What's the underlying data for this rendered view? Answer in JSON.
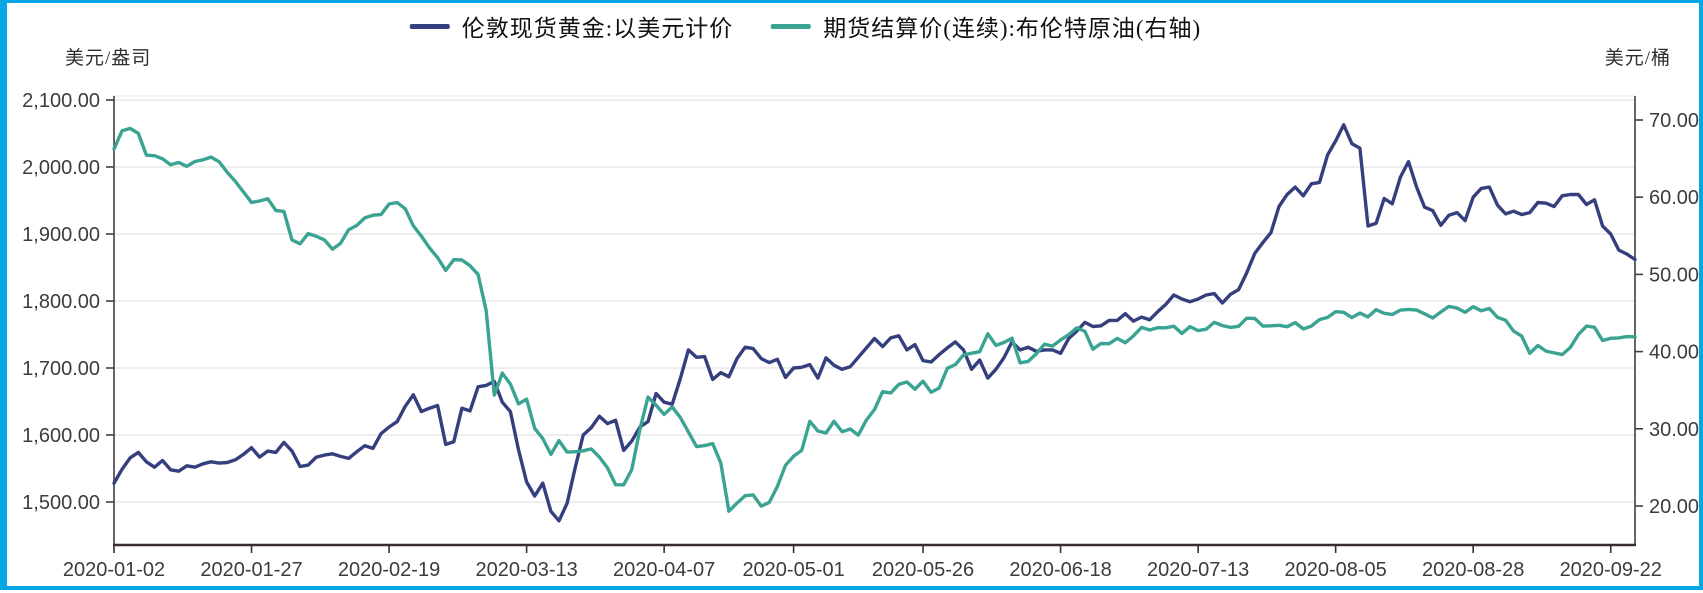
{
  "frame": {
    "border_color": "#06a7e4",
    "background": "#ffffff"
  },
  "legend": {
    "items": [
      {
        "label": "伦敦现货黄金:以美元计价",
        "color": "#353f7e"
      },
      {
        "label": "期货结算价(连续):布伦特原油(右轴)",
        "color": "#3ba392"
      }
    ]
  },
  "left_axis": {
    "unit": "美元/盎司",
    "min": 1500,
    "max": 2100,
    "tick_values": [
      2100,
      2000,
      1900,
      1800,
      1700,
      1600,
      1500
    ],
    "tick_labels": [
      "2,100.00",
      "2,000.00",
      "1,900.00",
      "1,800.00",
      "1,700.00",
      "1,600.00",
      "1,500.00"
    ]
  },
  "right_axis": {
    "unit": "美元/桶",
    "min": 20,
    "max": 70,
    "tick_values": [
      70,
      60,
      50,
      40,
      30,
      20
    ],
    "tick_labels": [
      "70.00",
      "60.00",
      "50.00",
      "40.00",
      "30.00",
      "20.00"
    ]
  },
  "x_axis": {
    "tick_labels": [
      "2020-01-02",
      "2020-01-27",
      "2020-02-19",
      "2020-03-13",
      "2020-04-07",
      "2020-05-01",
      "2020-05-26",
      "2020-06-18",
      "2020-07-13",
      "2020-08-05",
      "2020-08-28",
      "2020-09-22"
    ],
    "tick_indices": [
      0,
      17,
      34,
      51,
      68,
      84,
      100,
      117,
      134,
      151,
      168,
      185
    ]
  },
  "chart_data": {
    "type": "line",
    "title": "",
    "grid": true,
    "legend_position": "top-center",
    "x_dates": [
      "01-02",
      "01-03",
      "01-06",
      "01-07",
      "01-08",
      "01-09",
      "01-10",
      "01-13",
      "01-14",
      "01-15",
      "01-16",
      "01-17",
      "01-20",
      "01-21",
      "01-22",
      "01-23",
      "01-24",
      "01-27",
      "01-28",
      "01-29",
      "01-30",
      "01-31",
      "02-03",
      "02-04",
      "02-05",
      "02-06",
      "02-07",
      "02-10",
      "02-11",
      "02-12",
      "02-13",
      "02-14",
      "02-17",
      "02-18",
      "02-19",
      "02-20",
      "02-21",
      "02-24",
      "02-25",
      "02-26",
      "02-27",
      "02-28",
      "03-02",
      "03-03",
      "03-04",
      "03-05",
      "03-06",
      "03-09",
      "03-10",
      "03-11",
      "03-12",
      "03-13",
      "03-16",
      "03-17",
      "03-18",
      "03-19",
      "03-20",
      "03-23",
      "03-24",
      "03-25",
      "03-26",
      "03-27",
      "03-30",
      "03-31",
      "04-01",
      "04-02",
      "04-03",
      "04-06",
      "04-07",
      "04-08",
      "04-09",
      "04-14",
      "04-15",
      "04-16",
      "04-17",
      "04-20",
      "04-21",
      "04-22",
      "04-23",
      "04-24",
      "04-27",
      "04-28",
      "04-29",
      "04-30",
      "05-01",
      "05-04",
      "05-05",
      "05-06",
      "05-07",
      "05-08",
      "05-11",
      "05-12",
      "05-13",
      "05-14",
      "05-15",
      "05-18",
      "05-19",
      "05-20",
      "05-21",
      "05-22",
      "05-26",
      "05-27",
      "05-28",
      "05-29",
      "06-01",
      "06-02",
      "06-03",
      "06-04",
      "06-05",
      "06-08",
      "06-09",
      "06-10",
      "06-11",
      "06-12",
      "06-15",
      "06-16",
      "06-17",
      "06-18",
      "06-19",
      "06-22",
      "06-23",
      "06-24",
      "06-25",
      "06-26",
      "06-29",
      "06-30",
      "07-01",
      "07-02",
      "07-03",
      "07-06",
      "07-07",
      "07-08",
      "07-09",
      "07-10",
      "07-13",
      "07-14",
      "07-15",
      "07-16",
      "07-17",
      "07-20",
      "07-21",
      "07-22",
      "07-23",
      "07-24",
      "07-27",
      "07-28",
      "07-29",
      "07-30",
      "07-31",
      "08-03",
      "08-04",
      "08-05",
      "08-06",
      "08-07",
      "08-10",
      "08-11",
      "08-12",
      "08-13",
      "08-14",
      "08-17",
      "08-18",
      "08-19",
      "08-20",
      "08-21",
      "08-24",
      "08-25",
      "08-26",
      "08-27",
      "08-28",
      "08-31",
      "09-01",
      "09-02",
      "09-03",
      "09-04",
      "09-07",
      "09-08",
      "09-09",
      "09-10",
      "09-11",
      "09-14",
      "09-15",
      "09-16",
      "09-17",
      "09-18",
      "09-21",
      "09-22",
      "09-23",
      "09-24",
      "09-25"
    ],
    "series": [
      {
        "name": "伦敦现货黄金:以美元计价",
        "axis": "left",
        "color": "#353f7e",
        "values": [
          1528,
          1549,
          1566,
          1574,
          1560,
          1552,
          1562,
          1548,
          1546,
          1554,
          1552,
          1557,
          1560,
          1558,
          1559,
          1563,
          1571,
          1581,
          1567,
          1576,
          1574,
          1589,
          1576,
          1553,
          1555,
          1567,
          1570,
          1572,
          1568,
          1565,
          1575,
          1584,
          1580,
          1602,
          1612,
          1620,
          1643,
          1660,
          1635,
          1640,
          1644,
          1586,
          1590,
          1640,
          1636,
          1672,
          1674,
          1680,
          1649,
          1635,
          1578,
          1530,
          1509,
          1528,
          1486,
          1472,
          1498,
          1551,
          1600,
          1611,
          1628,
          1617,
          1622,
          1577,
          1591,
          1612,
          1620,
          1662,
          1649,
          1646,
          1684,
          1727,
          1716,
          1717,
          1683,
          1693,
          1687,
          1714,
          1731,
          1729,
          1714,
          1708,
          1713,
          1686,
          1700,
          1701,
          1705,
          1685,
          1715,
          1704,
          1698,
          1702,
          1716,
          1730,
          1744,
          1732,
          1745,
          1748,
          1727,
          1735,
          1711,
          1709,
          1720,
          1730,
          1739,
          1727,
          1698,
          1712,
          1685,
          1698,
          1715,
          1739,
          1727,
          1731,
          1725,
          1727,
          1727,
          1722,
          1744,
          1755,
          1768,
          1762,
          1763,
          1771,
          1771,
          1781,
          1770,
          1776,
          1772,
          1784,
          1795,
          1809,
          1803,
          1799,
          1803,
          1809,
          1811,
          1797,
          1810,
          1817,
          1842,
          1871,
          1887,
          1902,
          1941,
          1959,
          1970,
          1957,
          1975,
          1977,
          2018,
          2039,
          2063,
          2035,
          2028,
          1912,
          1916,
          1953,
          1945,
          1985,
          2008,
          1970,
          1940,
          1935,
          1913,
          1928,
          1932,
          1920,
          1955,
          1968,
          1970,
          1943,
          1930,
          1934,
          1929,
          1932,
          1947,
          1946,
          1941,
          1957,
          1959,
          1959,
          1944,
          1951,
          1912,
          1900,
          1876,
          1870,
          1862
        ]
      },
      {
        "name": "期货结算价(连续):布伦特原油(右轴)",
        "axis": "right",
        "color": "#3ba392",
        "values": [
          66.25,
          68.6,
          68.91,
          68.27,
          65.44,
          65.37,
          64.98,
          64.2,
          64.49,
          64.0,
          64.62,
          64.85,
          65.2,
          64.59,
          63.21,
          62.04,
          60.69,
          59.32,
          59.51,
          59.81,
          58.29,
          58.16,
          54.45,
          53.96,
          55.28,
          54.93,
          54.47,
          53.27,
          54.01,
          55.79,
          56.34,
          57.32,
          57.67,
          57.75,
          59.12,
          59.31,
          58.5,
          56.3,
          54.95,
          53.43,
          52.18,
          50.52,
          51.9,
          51.86,
          51.13,
          49.99,
          45.27,
          34.36,
          37.22,
          35.79,
          33.22,
          33.85,
          30.05,
          28.73,
          26.69,
          28.47,
          26.98,
          27.03,
          27.15,
          27.39,
          26.34,
          24.93,
          22.76,
          22.74,
          24.74,
          29.94,
          34.11,
          33.05,
          31.87,
          32.84,
          31.48,
          29.6,
          27.69,
          27.82,
          28.08,
          25.57,
          19.33,
          20.37,
          21.33,
          21.44,
          19.99,
          20.46,
          22.54,
          25.27,
          26.44,
          27.2,
          30.97,
          29.72,
          29.46,
          30.97,
          29.63,
          29.98,
          29.19,
          31.13,
          32.5,
          34.81,
          34.65,
          35.75,
          36.06,
          35.13,
          36.17,
          34.74,
          35.29,
          37.84,
          38.32,
          39.57,
          39.79,
          39.99,
          42.3,
          40.8,
          41.18,
          41.73,
          38.55,
          38.73,
          39.72,
          40.96,
          40.71,
          41.51,
          42.19,
          43.08,
          42.63,
          40.31,
          41.05,
          41.02,
          41.71,
          41.15,
          42.03,
          43.14,
          42.8,
          43.1,
          43.08,
          43.29,
          42.35,
          43.24,
          42.72,
          42.9,
          43.79,
          43.37,
          43.14,
          43.28,
          44.32,
          44.29,
          43.31,
          43.34,
          43.41,
          43.22,
          43.75,
          42.94,
          43.3,
          44.15,
          44.43,
          45.17,
          45.09,
          44.4,
          44.99,
          44.5,
          45.43,
          44.96,
          44.8,
          45.37,
          45.46,
          45.37,
          44.9,
          44.35,
          45.13,
          45.86,
          45.64,
          45.09,
          45.81,
          45.28,
          45.58,
          44.43,
          44.07,
          42.66,
          42.01,
          39.78,
          40.79,
          40.06,
          39.83,
          39.61,
          40.53,
          42.22,
          43.3,
          43.15,
          41.44,
          41.72,
          41.77,
          41.94,
          41.92
        ]
      }
    ]
  },
  "style": {
    "grid_color": "#e3e3e3",
    "axis_color": "#3f3f3f",
    "bottom_axis_color": "#3b2d2d",
    "tick_label_color": "#3c3c3c"
  }
}
